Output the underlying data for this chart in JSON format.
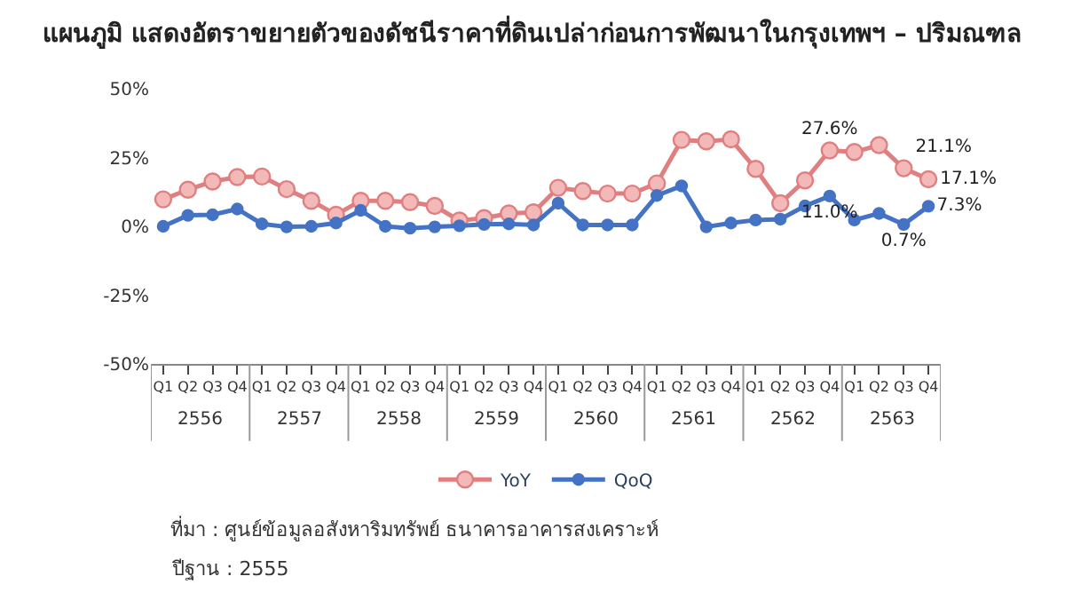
{
  "chart_data": {
    "type": "line",
    "title": "แผนภูมิ แสดงอัตราขยายตัวของดัชนีราคาที่ดินเปล่าก่อนการพัฒนาในกรุงเทพฯ – ปริมณฑล",
    "categories": [
      "Q1",
      "Q2",
      "Q3",
      "Q4",
      "Q1",
      "Q2",
      "Q3",
      "Q4",
      "Q1",
      "Q2",
      "Q3",
      "Q4",
      "Q1",
      "Q2",
      "Q3",
      "Q4",
      "Q1",
      "Q2",
      "Q3",
      "Q4",
      "Q1",
      "Q2",
      "Q3",
      "Q4",
      "Q1",
      "Q2",
      "Q3",
      "Q4",
      "Q1",
      "Q2",
      "Q3",
      "Q4"
    ],
    "annotations": [
      "2556",
      "2557",
      "2558",
      "2559",
      "2560",
      "2561",
      "2562",
      "2563",
      "ที่มา : ศูนย์ข้อมูลอสังหาริมทรัพย์ ธนาคารอาคารสงเคราะห์",
      "ปีฐาน : 2555"
    ],
    "series": [
      {
        "name": "YoY",
        "color": "#e07f80",
        "values": [
          9.8,
          13.3,
          16.3,
          17.9,
          18.1,
          13.5,
          9.3,
          4.2,
          9.3,
          9.3,
          8.8,
          7.4,
          2.1,
          3.0,
          4.7,
          5.1,
          14.0,
          12.8,
          11.9,
          11.9,
          15.6,
          31.4,
          30.9,
          31.6,
          20.9,
          8.4,
          16.7,
          27.6,
          27.0,
          29.5,
          21.1,
          17.1
        ],
        "value_labels": [
          null,
          null,
          null,
          null,
          null,
          null,
          null,
          null,
          null,
          null,
          null,
          null,
          null,
          null,
          null,
          null,
          null,
          null,
          null,
          null,
          null,
          null,
          null,
          null,
          null,
          null,
          null,
          "27.6%",
          null,
          null,
          "21.1%",
          "17.1%"
        ]
      },
      {
        "name": "QoQ",
        "color": "#4472c4",
        "values": [
          0,
          4.0,
          4.2,
          6.3,
          0.9,
          -0.2,
          0,
          1.2,
          5.8,
          0,
          -0.7,
          -0.2,
          0.2,
          0.7,
          0.9,
          0.5,
          8.4,
          0.5,
          0.5,
          0.5,
          11.2,
          14.7,
          -0.2,
          1.2,
          2.3,
          2.6,
          7.4,
          11.0,
          2.3,
          4.7,
          0.7,
          7.3
        ],
        "value_labels": [
          null,
          null,
          null,
          null,
          null,
          null,
          null,
          null,
          null,
          null,
          null,
          null,
          null,
          null,
          null,
          null,
          null,
          null,
          null,
          null,
          null,
          null,
          null,
          null,
          null,
          null,
          null,
          "11.0%",
          null,
          null,
          "0.7%",
          "7.3%"
        ]
      }
    ],
    "ylim": [
      -50,
      50
    ],
    "yticks": [
      {
        "value": -50,
        "label": "-50%"
      },
      {
        "value": -25,
        "label": "-25%"
      },
      {
        "value": 0,
        "label": "0%"
      },
      {
        "value": 25,
        "label": "25%"
      },
      {
        "value": 50,
        "label": "50%"
      }
    ],
    "legend": "bottom",
    "marker": "circle",
    "line_style": "solid"
  }
}
